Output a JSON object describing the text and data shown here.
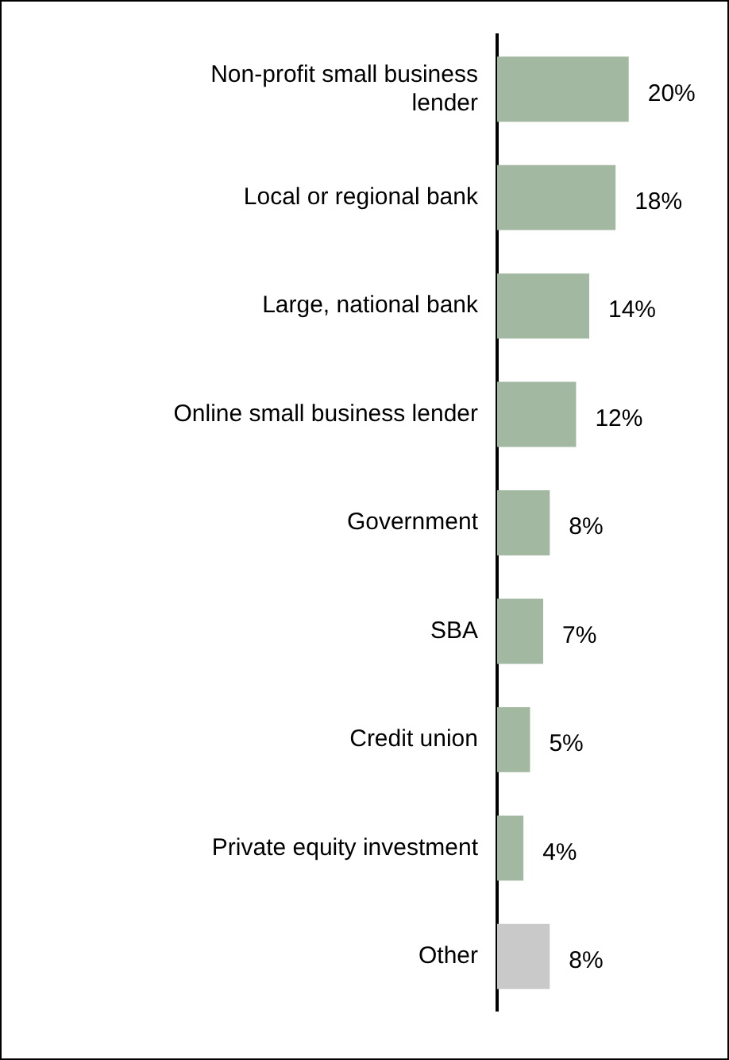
{
  "chart_data": {
    "type": "bar",
    "orientation": "horizontal",
    "categories": [
      "Non-profit small business lender",
      "Local or regional bank",
      "Large, national bank",
      "Online small business lender",
      "Government",
      "SBA",
      "Credit union",
      "Private equity investment",
      "Other"
    ],
    "values": [
      20,
      18,
      14,
      12,
      8,
      7,
      5,
      4,
      8
    ],
    "value_labels": [
      "20%",
      "18%",
      "14%",
      "12%",
      "8%",
      "7%",
      "5%",
      "4%",
      "8%"
    ],
    "colors": [
      "#a3b8a0",
      "#a3b8a0",
      "#a3b8a0",
      "#a3b8a0",
      "#a3b8a0",
      "#a3b8a0",
      "#a3b8a0",
      "#a3b8a0",
      "#c9c9c9"
    ],
    "xlim": [
      0,
      35
    ],
    "tick_labels": "y"
  }
}
